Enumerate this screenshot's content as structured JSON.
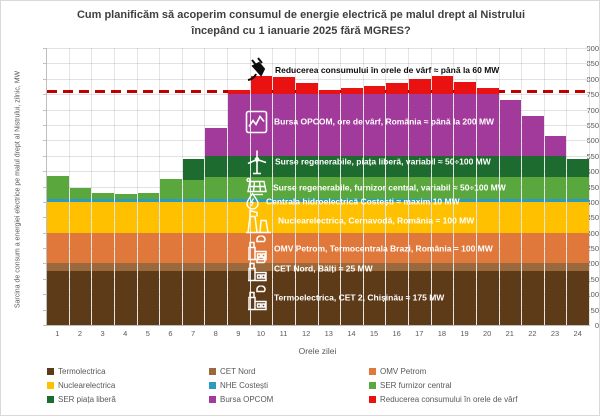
{
  "title": {
    "line1": "Cum planificăm să acoperim consumul de energie electrică pe malul drept al Nistrului",
    "line2": "începând cu 1 ianuarie 2025 fără MGRES?"
  },
  "axes": {
    "y_label": "Sarcina de consum a energiei electrice pe malul drept al Nistrului, zilnic, MW",
    "x_label": "Orele zilei",
    "y_min": 0,
    "y_max": 900,
    "y_step": 50,
    "x_ticks": [
      "1",
      "2",
      "3",
      "4",
      "5",
      "6",
      "7",
      "8",
      "9",
      "10",
      "11",
      "12",
      "13",
      "14",
      "15",
      "16",
      "17",
      "18",
      "19",
      "20",
      "21",
      "22",
      "23",
      "24"
    ]
  },
  "chart_data": {
    "type": "bar",
    "subtype": "stacked-columns",
    "unit": "MW",
    "x": [
      1,
      2,
      3,
      4,
      5,
      6,
      7,
      8,
      9,
      10,
      11,
      12,
      13,
      14,
      15,
      16,
      17,
      18,
      19,
      20,
      21,
      22,
      23,
      24
    ],
    "ylim": [
      0,
      900
    ],
    "grid": true,
    "reference_line": {
      "value_mw": 760,
      "color": "#c00000",
      "style": "dashed"
    },
    "series": [
      {
        "name": "Termoelectrica",
        "color": "#5d3a18",
        "values": [
          175,
          175,
          175,
          175,
          175,
          175,
          175,
          175,
          175,
          175,
          175,
          175,
          175,
          175,
          175,
          175,
          175,
          175,
          175,
          175,
          175,
          175,
          175,
          175
        ]
      },
      {
        "name": "CET Nord",
        "color": "#9a6a3c",
        "values": [
          25,
          25,
          25,
          25,
          25,
          25,
          25,
          25,
          25,
          25,
          25,
          25,
          25,
          25,
          25,
          25,
          25,
          25,
          25,
          25,
          25,
          25,
          25,
          25
        ]
      },
      {
        "name": "OMV Petrom",
        "color": "#e0783c",
        "values": [
          100,
          100,
          100,
          100,
          100,
          100,
          100,
          100,
          100,
          100,
          100,
          100,
          100,
          100,
          100,
          100,
          100,
          100,
          100,
          100,
          100,
          100,
          100,
          100
        ]
      },
      {
        "name": "Nuclearelectrica",
        "color": "#ffc000",
        "values": [
          100,
          100,
          100,
          100,
          100,
          100,
          100,
          100,
          100,
          100,
          100,
          100,
          100,
          100,
          100,
          100,
          100,
          100,
          100,
          100,
          100,
          100,
          100,
          100
        ]
      },
      {
        "name": "NHE Costești",
        "color": "#2b9bbf",
        "values": [
          10,
          10,
          10,
          10,
          10,
          10,
          10,
          10,
          10,
          10,
          10,
          10,
          10,
          10,
          10,
          10,
          10,
          10,
          10,
          10,
          10,
          10,
          10,
          10
        ]
      },
      {
        "name": "SER furnizor central",
        "color": "#5aa83d",
        "values": [
          75,
          35,
          20,
          15,
          20,
          65,
          60,
          70,
          70,
          70,
          70,
          70,
          70,
          70,
          70,
          70,
          70,
          70,
          70,
          70,
          70,
          70,
          70,
          70
        ]
      },
      {
        "name": "SER piața liberă",
        "color": "#1e6b2f",
        "values": [
          0,
          0,
          0,
          0,
          0,
          0,
          70,
          70,
          70,
          70,
          70,
          70,
          70,
          70,
          70,
          70,
          70,
          70,
          70,
          70,
          70,
          70,
          70,
          60
        ]
      },
      {
        "name": "Bursa OPCOM",
        "color": "#a23a9c",
        "values": [
          0,
          0,
          0,
          0,
          0,
          0,
          0,
          90,
          200,
          200,
          200,
          200,
          200,
          200,
          200,
          200,
          200,
          200,
          200,
          200,
          180,
          130,
          65,
          0
        ]
      },
      {
        "name": "Reducerea consumului în orele de vârf",
        "color": "#ea1111",
        "values": [
          0,
          0,
          0,
          0,
          0,
          0,
          0,
          0,
          15,
          60,
          55,
          35,
          15,
          20,
          25,
          35,
          50,
          60,
          40,
          20,
          0,
          0,
          0,
          0
        ]
      }
    ]
  },
  "annotations": [
    {
      "icon": "plug",
      "anchor_mw": 830,
      "text_color": "#0d0d0d",
      "halo": true,
      "label": "Reducerea consumului în orele de vârf ≈ până la 60 MW"
    },
    {
      "icon": "chart",
      "anchor_mw": 660,
      "text_color": "#ffffff",
      "label": "Bursa OPCOM, ore de vârf, România ≈ până la 200 MW"
    },
    {
      "icon": "wind",
      "anchor_mw": 530,
      "text_color": "#ffffff",
      "label": "Surse regenerabile, piața liberă, variabil ≈ 50÷100 MW"
    },
    {
      "icon": "solar",
      "anchor_mw": 448,
      "text_color": "#ffffff",
      "label": "Surse regenerabile, furnizor central, variabil ≈ 50÷100 MW"
    },
    {
      "icon": "drop",
      "anchor_mw": 402,
      "text_color": "#ffffff",
      "label": "Centrala hidroelectrică Costești ≈ maxim 10 MW"
    },
    {
      "icon": "nuclear",
      "anchor_mw": 340,
      "text_color": "#ffffff",
      "label": "Nuclearelectrica, Cernavodă, România = 100 MW"
    },
    {
      "icon": "factory",
      "anchor_mw": 250,
      "text_color": "#ffffff",
      "label": "OMV Petrom, Termocentrala Brazi, România = 100 MW"
    },
    {
      "icon": "factory",
      "anchor_mw": 182,
      "text_color": "#ffffff",
      "label": "CET Nord, Bălți ≈ 25 MW"
    },
    {
      "icon": "factory",
      "anchor_mw": 88,
      "text_color": "#ffffff",
      "label": "Termoelectrica, CET 2, Chișinău ≈ 175 MW"
    }
  ],
  "legend": [
    {
      "label": "Termolectrica",
      "color": "#5d3a18"
    },
    {
      "label": "CET Nord",
      "color": "#9a6a3c"
    },
    {
      "label": "OMV Petrom",
      "color": "#e0783c"
    },
    {
      "label": "Nuclearelectrica",
      "color": "#ffc000"
    },
    {
      "label": "NHE Costești",
      "color": "#2b9bbf"
    },
    {
      "label": "SER furnizor central",
      "color": "#5aa83d"
    },
    {
      "label": "SER piața liberă",
      "color": "#1e6b2f"
    },
    {
      "label": "Bursa OPCOM",
      "color": "#a23a9c"
    },
    {
      "label": "Reducerea consumului în orele de vârf",
      "color": "#ea1111"
    }
  ]
}
